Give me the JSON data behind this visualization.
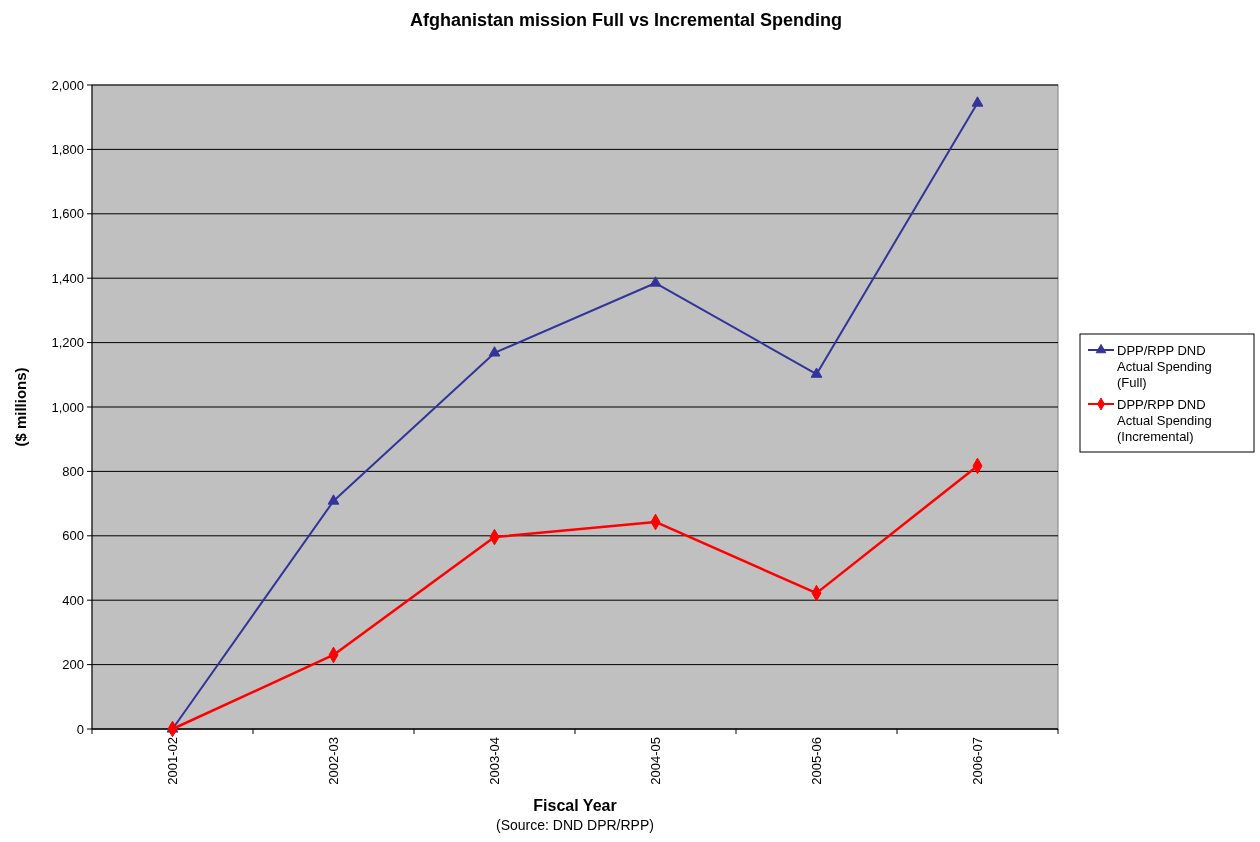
{
  "chart_data": {
    "type": "line",
    "title": "Afghanistan mission Full vs Incremental Spending",
    "xlabel": "Fiscal Year",
    "ylabel": "($ millions)",
    "annotations": [
      "(Source: DND DPR/RPP)"
    ],
    "categories": [
      "2001-02",
      "2002-03",
      "2003-04",
      "2004-05",
      "2005-06",
      "2006-07"
    ],
    "series": [
      {
        "name": "DPP/RPP DND Actual Spending (Full)",
        "color": "#333399",
        "marker": "triangle",
        "values": [
          0,
          708,
          1168,
          1385,
          1102,
          1944
        ]
      },
      {
        "name": "DPP/RPP DND Actual Spending (Incremental)",
        "color": "#ff0000",
        "marker": "diamond",
        "values": [
          0,
          230,
          596,
          643,
          422,
          817
        ]
      }
    ],
    "ylim": [
      0,
      2000
    ],
    "yticks": [
      0,
      200,
      400,
      600,
      800,
      {
        "value": 1000,
        "label": "1,000"
      },
      {
        "value": 1200,
        "label": "1,200"
      },
      {
        "value": 1400,
        "label": "1,400"
      },
      {
        "value": 1600,
        "label": "1,600"
      },
      {
        "value": 1800,
        "label": "1,800"
      },
      {
        "value": 2000,
        "label": "2,000"
      }
    ],
    "grid": "y",
    "legend": "right",
    "line_style": "solid"
  }
}
